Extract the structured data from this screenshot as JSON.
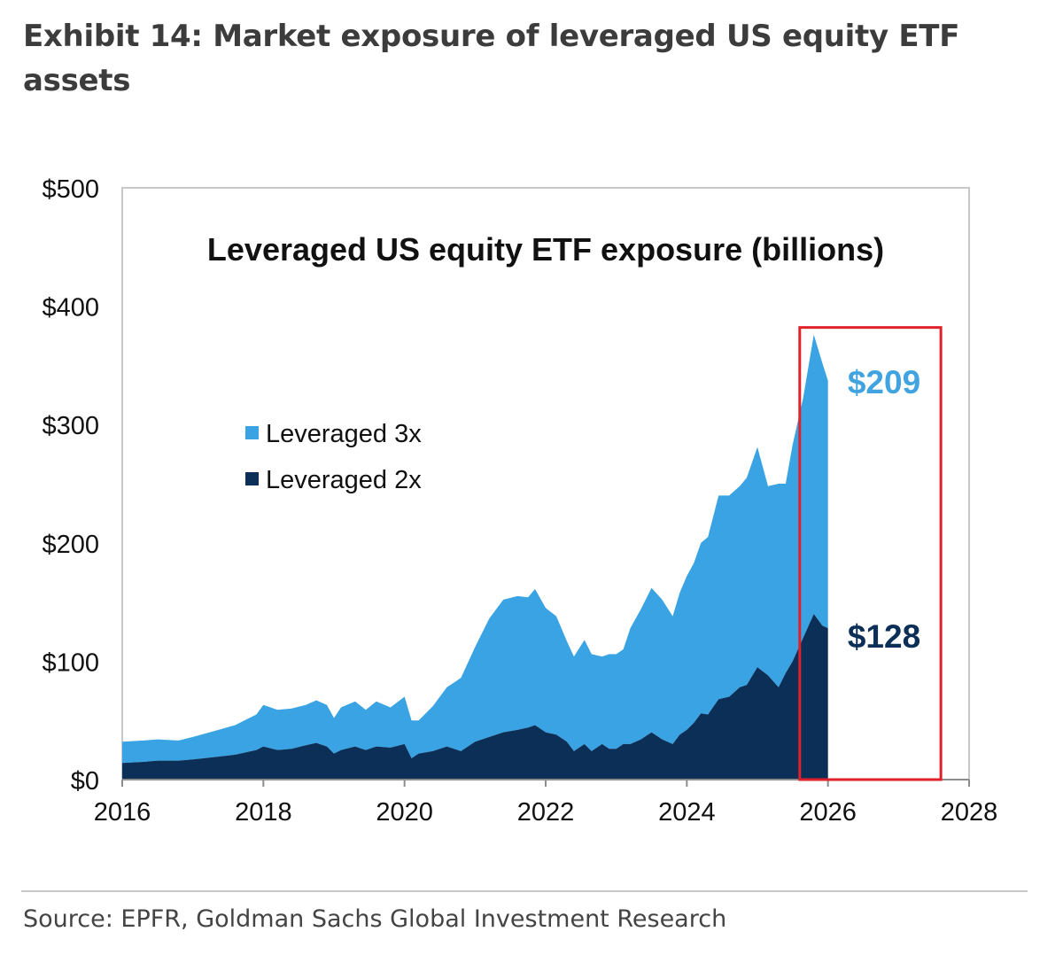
{
  "exhibit_title": "Exhibit 14: Market exposure of leveraged US equity ETF assets",
  "source": "Source: EPFR, Goldman Sachs Global Investment Research",
  "colors": {
    "leveraged_3x": "#3aa3e3",
    "leveraged_2x": "#0b2f57",
    "label_3x": "#41a4e0",
    "label_2x": "#0b2f57",
    "highlight_box": "#e0202a",
    "axis": "#8c8c8c"
  },
  "chart_data": {
    "type": "area",
    "stacked": true,
    "title": "Leveraged US equity ETF exposure (billions)",
    "xlabel": "",
    "ylabel": "",
    "xlim": [
      2016,
      2028
    ],
    "ylim": [
      0,
      500
    ],
    "x_ticks": [
      2016,
      2018,
      2020,
      2022,
      2024,
      2026,
      2028
    ],
    "x_tick_labels": [
      "2016",
      "2018",
      "2020",
      "2022",
      "2024",
      "2026",
      "2028"
    ],
    "y_ticks": [
      0,
      100,
      200,
      300,
      400,
      500
    ],
    "y_tick_labels": [
      "$0",
      "$100",
      "$200",
      "$300",
      "$400",
      "$500"
    ],
    "grid": false,
    "legend_position": "left",
    "series": [
      {
        "name": "Leveraged 3x",
        "x": [
          2016.0,
          2016.3,
          2016.5,
          2016.8,
          2017.0,
          2017.3,
          2017.6,
          2017.9,
          2018.0,
          2018.2,
          2018.4,
          2018.6,
          2018.75,
          2018.9,
          2019.0,
          2019.1,
          2019.3,
          2019.45,
          2019.6,
          2019.8,
          2020.0,
          2020.1,
          2020.2,
          2020.4,
          2020.6,
          2020.8,
          2021.0,
          2021.2,
          2021.4,
          2021.6,
          2021.75,
          2021.85,
          2022.0,
          2022.15,
          2022.3,
          2022.4,
          2022.55,
          2022.65,
          2022.8,
          2022.9,
          2023.0,
          2023.1,
          2023.2,
          2023.35,
          2023.5,
          2023.65,
          2023.8,
          2023.9,
          2024.0,
          2024.1,
          2024.2,
          2024.3,
          2024.45,
          2024.6,
          2024.75,
          2024.85,
          2025.0,
          2025.15,
          2025.3,
          2025.4,
          2025.5,
          2025.65,
          2025.8,
          2025.92,
          2026.0
        ],
        "values": [
          18,
          18,
          18,
          17,
          19,
          22,
          25,
          30,
          35,
          34,
          34,
          34,
          36,
          35,
          30,
          36,
          38,
          34,
          38,
          34,
          40,
          32,
          28,
          38,
          50,
          62,
          80,
          100,
          112,
          113,
          110,
          115,
          105,
          100,
          85,
          80,
          88,
          82,
          74,
          80,
          80,
          80,
          98,
          110,
          122,
          118,
          108,
          120,
          130,
          135,
          144,
          150,
          172,
          170,
          170,
          175,
          186,
          160,
          172,
          160,
          183,
          203,
          236,
          222,
          209
        ]
      },
      {
        "name": "Leveraged 2x",
        "x": [
          2016.0,
          2016.3,
          2016.5,
          2016.8,
          2017.0,
          2017.3,
          2017.6,
          2017.9,
          2018.0,
          2018.2,
          2018.4,
          2018.6,
          2018.75,
          2018.9,
          2019.0,
          2019.1,
          2019.3,
          2019.45,
          2019.6,
          2019.8,
          2020.0,
          2020.1,
          2020.2,
          2020.4,
          2020.6,
          2020.8,
          2021.0,
          2021.2,
          2021.4,
          2021.6,
          2021.75,
          2021.85,
          2022.0,
          2022.15,
          2022.3,
          2022.4,
          2022.55,
          2022.65,
          2022.8,
          2022.9,
          2023.0,
          2023.1,
          2023.2,
          2023.35,
          2023.5,
          2023.65,
          2023.8,
          2023.9,
          2024.0,
          2024.1,
          2024.2,
          2024.3,
          2024.45,
          2024.6,
          2024.75,
          2024.85,
          2025.0,
          2025.15,
          2025.3,
          2025.4,
          2025.5,
          2025.65,
          2025.8,
          2025.92,
          2026.0
        ],
        "values": [
          14,
          15,
          16,
          16,
          17,
          19,
          21,
          25,
          28,
          25,
          26,
          29,
          31,
          28,
          22,
          25,
          28,
          25,
          28,
          27,
          30,
          18,
          22,
          24,
          28,
          24,
          32,
          36,
          40,
          42,
          44,
          46,
          40,
          38,
          32,
          24,
          30,
          24,
          30,
          26,
          26,
          30,
          30,
          34,
          40,
          34,
          30,
          38,
          42,
          48,
          56,
          55,
          68,
          70,
          78,
          80,
          95,
          88,
          78,
          90,
          100,
          120,
          140,
          130,
          128
        ]
      }
    ],
    "annotations": [
      {
        "text": "$209",
        "series": "Leveraged 3x"
      },
      {
        "text": "$128",
        "series": "Leveraged 2x"
      }
    ],
    "highlight": {
      "x_range": [
        2025.6,
        2027.6
      ],
      "y_range": [
        0,
        382
      ]
    }
  }
}
